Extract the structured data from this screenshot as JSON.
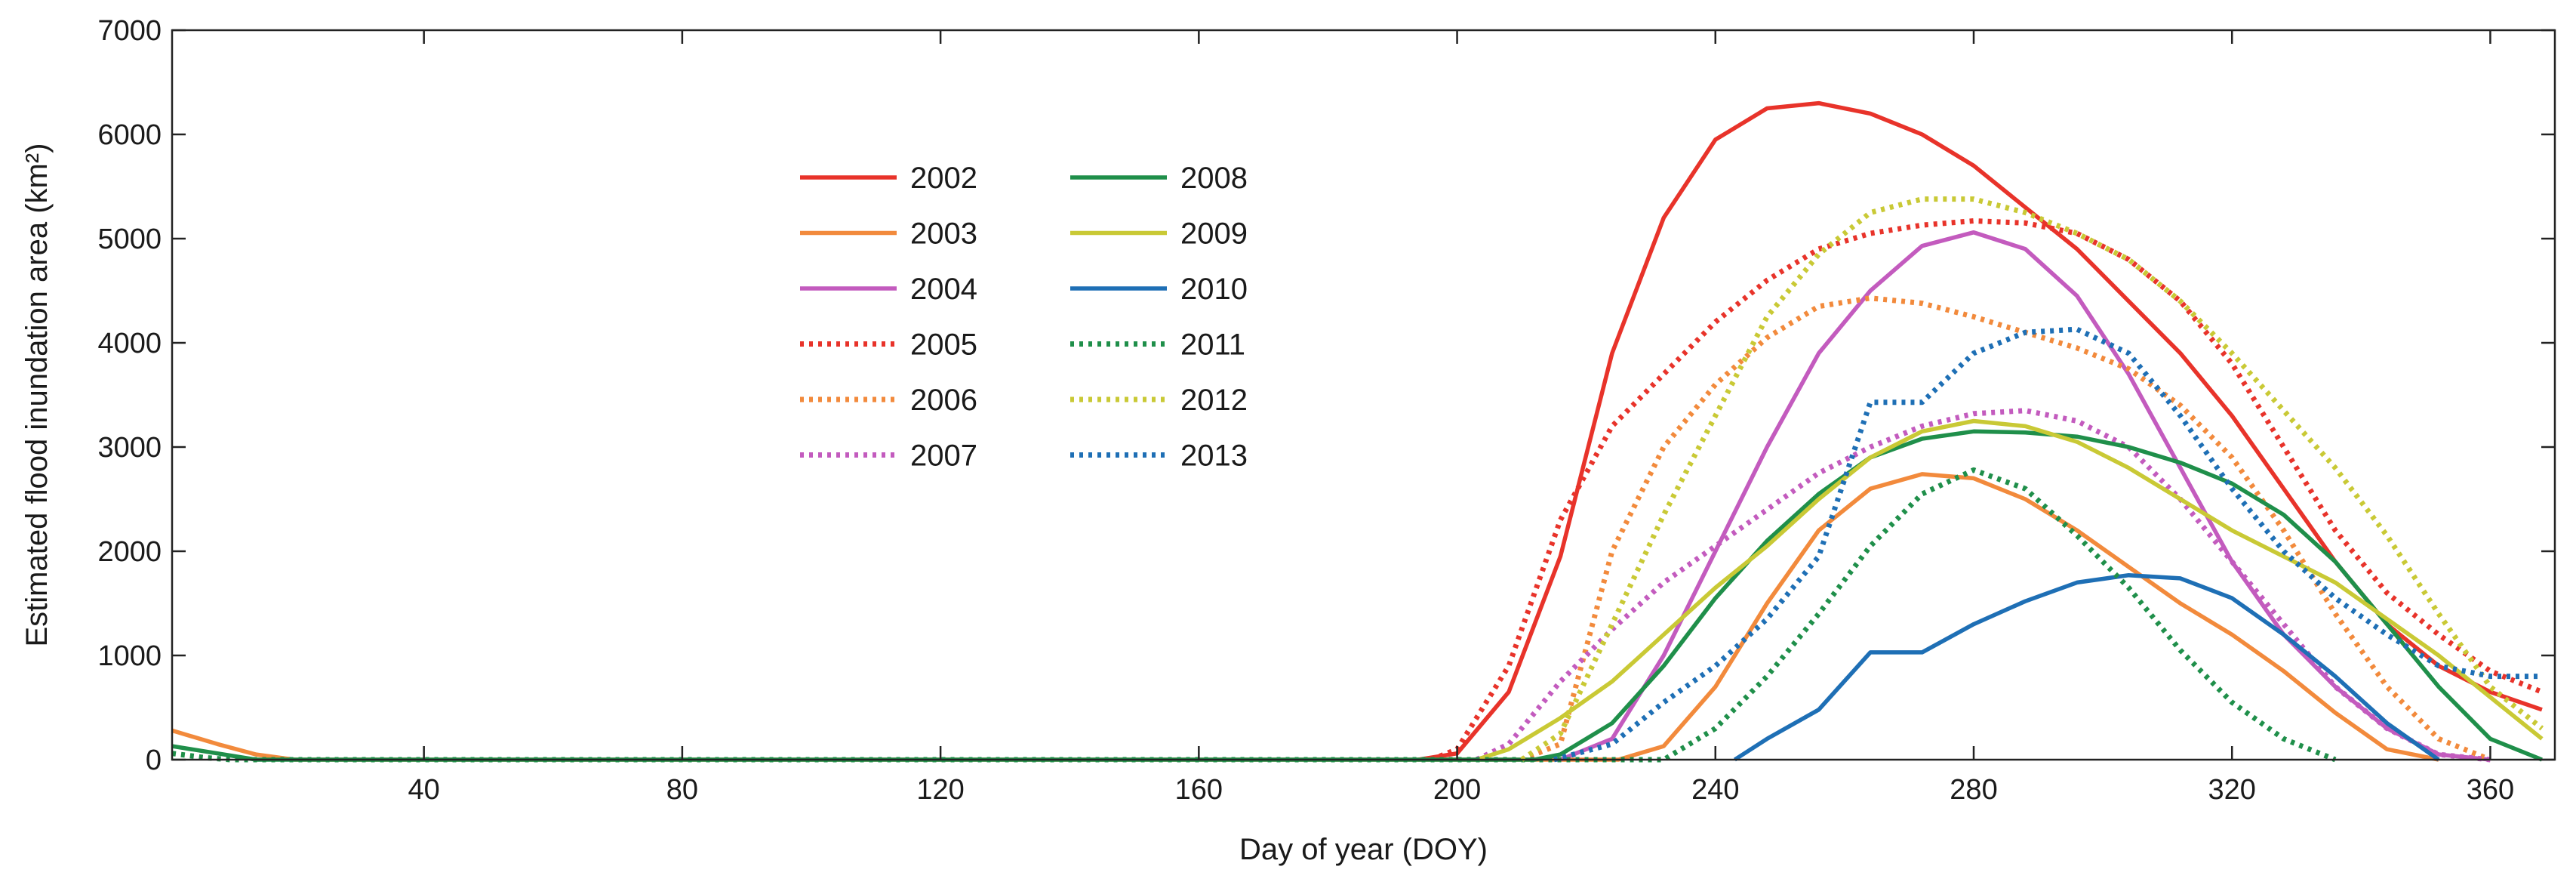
{
  "chart_data": {
    "type": "line",
    "title": "",
    "xlabel": "Day of year (DOY)",
    "ylabel": "Estimated flood inundation area (km²)",
    "xlim": [
      1,
      370
    ],
    "ylim": [
      0,
      7000
    ],
    "xticks": [
      40,
      80,
      120,
      160,
      200,
      240,
      280,
      320,
      360
    ],
    "yticks": [
      0,
      1000,
      2000,
      3000,
      4000,
      5000,
      6000,
      7000
    ],
    "grid": false,
    "legend_position": "upper-left-center",
    "series": [
      {
        "name": "2002",
        "color": "#e8332a",
        "style": "solid",
        "x": [
          194,
          200,
          208,
          216,
          224,
          232,
          240,
          248,
          256,
          264,
          272,
          280,
          288,
          296,
          304,
          312,
          320,
          328,
          336,
          344,
          352,
          360,
          368
        ],
        "y": [
          0,
          60,
          650,
          1950,
          3900,
          5200,
          5950,
          6250,
          6300,
          6200,
          6000,
          5700,
          5300,
          4900,
          4400,
          3900,
          3300,
          2600,
          1900,
          1300,
          900,
          650,
          480
        ]
      },
      {
        "name": "2003",
        "color": "#f28a3c",
        "style": "solid",
        "x": [
          1,
          8,
          14,
          20,
          225,
          232,
          240,
          248,
          256,
          264,
          272,
          280,
          288,
          296,
          304,
          312,
          320,
          328,
          336,
          344,
          352
        ],
        "y": [
          280,
          150,
          50,
          0,
          0,
          130,
          700,
          1500,
          2200,
          2600,
          2740,
          2700,
          2500,
          2200,
          1850,
          1500,
          1200,
          850,
          450,
          100,
          0
        ]
      },
      {
        "name": "2004",
        "color": "#c35bbe",
        "style": "solid",
        "x": [
          216,
          224,
          232,
          240,
          248,
          256,
          264,
          272,
          280,
          288,
          296,
          304,
          312,
          320,
          328,
          336,
          344,
          352,
          360
        ],
        "y": [
          0,
          200,
          1000,
          2000,
          3000,
          3900,
          4500,
          4930,
          5060,
          4900,
          4450,
          3700,
          2800,
          1900,
          1200,
          700,
          300,
          50,
          0
        ]
      },
      {
        "name": "2005",
        "color": "#e8332a",
        "style": "dotted",
        "x": [
          196,
          200,
          208,
          216,
          224,
          232,
          240,
          248,
          256,
          264,
          272,
          280,
          288,
          296,
          304,
          312,
          320,
          328,
          336,
          344,
          352,
          360,
          368
        ],
        "y": [
          0,
          100,
          900,
          2300,
          3200,
          3700,
          4200,
          4600,
          4900,
          5050,
          5130,
          5170,
          5150,
          5050,
          4800,
          4400,
          3800,
          3000,
          2200,
          1600,
          1200,
          850,
          650
        ]
      },
      {
        "name": "2006",
        "color": "#f28a3c",
        "style": "dotted",
        "x": [
          210,
          216,
          224,
          232,
          240,
          248,
          256,
          264,
          272,
          280,
          288,
          296,
          304,
          312,
          320,
          328,
          336,
          344,
          352,
          360
        ],
        "y": [
          0,
          150,
          2000,
          3000,
          3600,
          4050,
          4350,
          4430,
          4380,
          4250,
          4100,
          3950,
          3750,
          3400,
          2900,
          2200,
          1400,
          700,
          200,
          0
        ]
      },
      {
        "name": "2007",
        "color": "#c35bbe",
        "style": "dotted",
        "x": [
          203,
          208,
          216,
          224,
          232,
          240,
          248,
          256,
          264,
          272,
          280,
          288,
          296,
          304,
          312,
          320,
          328,
          336,
          344,
          352,
          360
        ],
        "y": [
          0,
          150,
          750,
          1250,
          1700,
          2050,
          2400,
          2750,
          3000,
          3200,
          3320,
          3350,
          3250,
          3000,
          2500,
          1900,
          1300,
          700,
          300,
          50,
          0
        ]
      },
      {
        "name": "2008",
        "color": "#1f8f4a",
        "style": "solid",
        "x": [
          1,
          8,
          14,
          212,
          216,
          224,
          232,
          240,
          248,
          256,
          264,
          272,
          280,
          288,
          296,
          304,
          312,
          320,
          328,
          336,
          344,
          352,
          360,
          368
        ],
        "y": [
          130,
          60,
          0,
          0,
          50,
          350,
          900,
          1550,
          2100,
          2550,
          2900,
          3080,
          3150,
          3140,
          3100,
          3000,
          2850,
          2650,
          2350,
          1900,
          1300,
          700,
          200,
          0
        ]
      },
      {
        "name": "2009",
        "color": "#c9c935",
        "style": "solid",
        "x": [
          203,
          208,
          216,
          224,
          232,
          240,
          248,
          256,
          264,
          272,
          280,
          288,
          296,
          304,
          312,
          320,
          328,
          336,
          344,
          352,
          360,
          368
        ],
        "y": [
          0,
          100,
          400,
          750,
          1200,
          1650,
          2050,
          2500,
          2900,
          3150,
          3250,
          3200,
          3050,
          2800,
          2500,
          2200,
          1950,
          1700,
          1350,
          1000,
          600,
          200
        ]
      },
      {
        "name": "2010",
        "color": "#1e6fb5",
        "style": "solid",
        "x": [
          243,
          248,
          256,
          264,
          272,
          280,
          288,
          296,
          304,
          312,
          320,
          328,
          336,
          344,
          352
        ],
        "y": [
          0,
          200,
          480,
          1030,
          1030,
          1300,
          1520,
          1700,
          1770,
          1740,
          1550,
          1200,
          800,
          350,
          0
        ]
      },
      {
        "name": "2011",
        "color": "#1f8f4a",
        "style": "dotted",
        "x": [
          1,
          6,
          10,
          232,
          240,
          248,
          256,
          264,
          272,
          280,
          288,
          296,
          304,
          312,
          320,
          328,
          336
        ],
        "y": [
          60,
          20,
          0,
          0,
          300,
          800,
          1400,
          2050,
          2550,
          2780,
          2600,
          2150,
          1650,
          1050,
          550,
          200,
          0
        ]
      },
      {
        "name": "2012",
        "color": "#c9c935",
        "style": "dotted",
        "x": [
          210,
          216,
          224,
          232,
          240,
          248,
          256,
          264,
          272,
          280,
          288,
          296,
          304,
          312,
          320,
          328,
          336,
          344,
          352,
          360,
          368
        ],
        "y": [
          0,
          250,
          1300,
          2350,
          3300,
          4250,
          4850,
          5250,
          5380,
          5380,
          5250,
          5050,
          4800,
          4400,
          3900,
          3350,
          2800,
          2150,
          1400,
          700,
          300
        ]
      },
      {
        "name": "2013",
        "color": "#1e6fb5",
        "style": "dotted",
        "x": [
          215,
          224,
          232,
          240,
          248,
          256,
          264,
          272,
          280,
          288,
          296,
          304,
          312,
          320,
          328,
          336,
          344,
          352,
          360,
          368
        ],
        "y": [
          0,
          150,
          550,
          900,
          1350,
          1950,
          3430,
          3430,
          3900,
          4100,
          4130,
          3900,
          3300,
          2600,
          2000,
          1550,
          1200,
          900,
          800,
          800
        ]
      }
    ]
  }
}
